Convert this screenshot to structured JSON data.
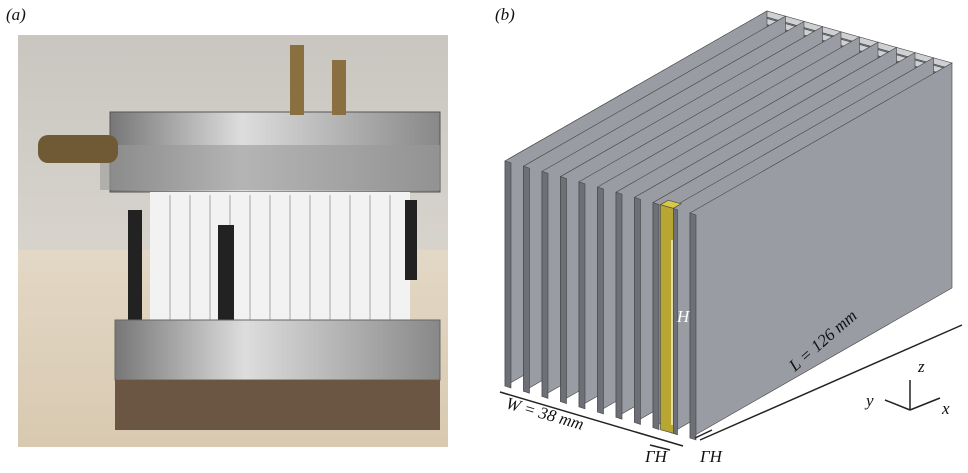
{
  "panel_a": {
    "label": "(a)"
  },
  "panel_b": {
    "label": "(b)",
    "height_label": "H",
    "width_label": "W = 38 mm",
    "length_label": "L = 126 mm",
    "gap_label_left": "ΓH",
    "gap_label_right": "ΓH",
    "axes": {
      "x": "x",
      "y": "y",
      "z": "z"
    }
  }
}
